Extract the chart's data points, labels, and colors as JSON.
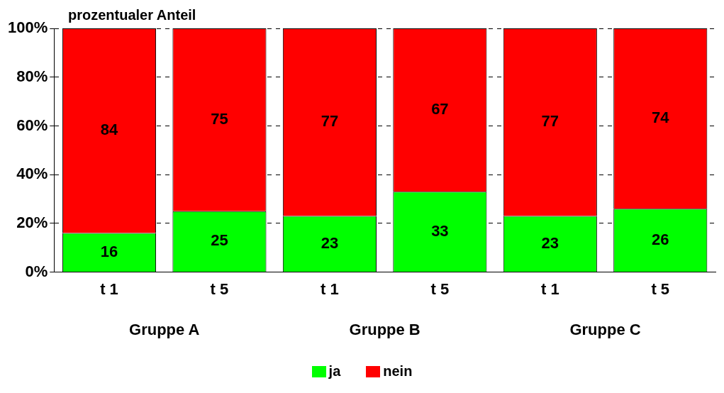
{
  "chart_data": {
    "type": "bar",
    "stacked": true,
    "ylabel": "prozentualer Anteil",
    "categories": [
      "t 1",
      "t 5",
      "t 1",
      "t 5",
      "t 1",
      "t 5"
    ],
    "series": [
      {
        "name": "ja",
        "color": "#00ff00",
        "values": [
          16,
          25,
          23,
          33,
          23,
          26
        ]
      },
      {
        "name": "nein",
        "color": "#ff0000",
        "values": [
          84,
          75,
          77,
          67,
          77,
          74
        ]
      }
    ],
    "ylim": [
      0,
      100
    ],
    "yticks": [
      {
        "value": 0,
        "label": "0%"
      },
      {
        "value": 20,
        "label": "20%"
      },
      {
        "value": 40,
        "label": "40%"
      },
      {
        "value": 60,
        "label": "60%"
      },
      {
        "value": 80,
        "label": "80%"
      },
      {
        "value": 100,
        "label": "100%"
      }
    ],
    "grid": "y",
    "data_labels": true,
    "legend": "bottom",
    "annotations": [
      "Gruppe A",
      "Gruppe B",
      "Gruppe C"
    ]
  }
}
